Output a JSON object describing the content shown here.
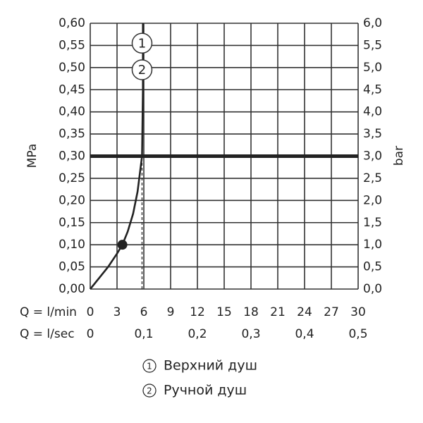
{
  "chart_data": {
    "type": "line",
    "ylabel": "MPa",
    "y2label": "bar",
    "xlabel": "Q = l/min",
    "x2label": "Q = l/sec",
    "xlim": [
      0,
      30
    ],
    "xticks": [
      0,
      3,
      6,
      9,
      12,
      15,
      18,
      21,
      24,
      27,
      30
    ],
    "x2lim": [
      0,
      0.5
    ],
    "x2ticks": [
      0,
      {
        "value": 0.1,
        "label": "0,1"
      },
      {
        "value": 0.2,
        "label": "0,2"
      },
      {
        "value": 0.3,
        "label": "0,3"
      },
      {
        "value": 0.4,
        "label": "0,4"
      },
      {
        "value": 0.5,
        "label": "0,5"
      }
    ],
    "ylim": [
      0,
      0.6
    ],
    "yticks": [
      {
        "value": 0,
        "label": "0,00"
      },
      {
        "value": 0.05,
        "label": "0,05"
      },
      {
        "value": 0.1,
        "label": "0,10"
      },
      {
        "value": 0.15,
        "label": "0,15"
      },
      {
        "value": 0.2,
        "label": "0,20"
      },
      {
        "value": 0.25,
        "label": "0,25"
      },
      {
        "value": 0.3,
        "label": "0,30"
      },
      {
        "value": 0.35,
        "label": "0,35"
      },
      {
        "value": 0.4,
        "label": "0,40"
      },
      {
        "value": 0.45,
        "label": "0,45"
      },
      {
        "value": 0.5,
        "label": "0,50"
      },
      {
        "value": 0.55,
        "label": "0,55"
      },
      {
        "value": 0.6,
        "label": "0,60"
      }
    ],
    "y2lim": [
      0,
      6
    ],
    "y2ticks": [
      {
        "value": 0,
        "label": "0,0"
      },
      {
        "value": 0.5,
        "label": "0,5"
      },
      {
        "value": 1,
        "label": "1,0"
      },
      {
        "value": 1.5,
        "label": "1,5"
      },
      {
        "value": 2,
        "label": "2,0"
      },
      {
        "value": 2.5,
        "label": "2,5"
      },
      {
        "value": 3,
        "label": "3,0"
      },
      {
        "value": 3.5,
        "label": "3,5"
      },
      {
        "value": 4,
        "label": "4,0"
      },
      {
        "value": 4.5,
        "label": "4,5"
      },
      {
        "value": 5,
        "label": "5,0"
      },
      {
        "value": 5.5,
        "label": "5,5"
      },
      {
        "value": 6,
        "label": "6,0"
      }
    ],
    "grid": true,
    "series": [
      {
        "color": "#222222",
        "x": [
          0,
          1,
          2,
          3,
          3.6,
          4.2,
          4.8,
          5.3,
          5.8,
          5.9,
          5.9
        ],
        "values": [
          0,
          0.025,
          0.05,
          0.08,
          0.1,
          0.13,
          0.17,
          0.22,
          0.3,
          0.45,
          0.6
        ]
      }
    ],
    "point": {
      "x": 3.6,
      "y": 0.1
    },
    "hline": 0.3,
    "vline_x": 5.8,
    "markers": [
      {
        "label": "1",
        "x": 5.8,
        "y": 0.555
      },
      {
        "label": "2",
        "x": 5.8,
        "y": 0.495
      }
    ],
    "legend": [
      {
        "marker": "1",
        "label": "Верхний душ"
      },
      {
        "marker": "2",
        "label": "Ручной душ"
      }
    ]
  }
}
